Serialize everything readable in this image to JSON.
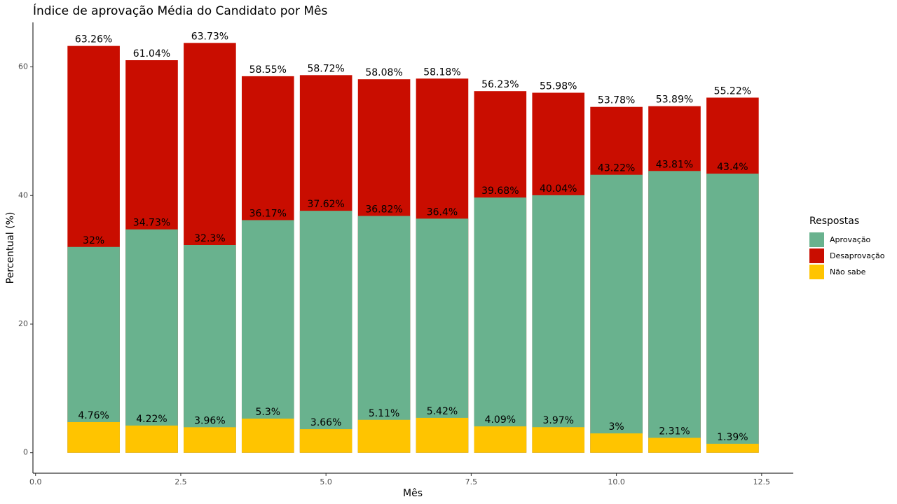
{
  "chart_data": {
    "type": "bar",
    "title": "Índice de aprovação Média do Candidato por Mês",
    "x_label": "Mês",
    "y_label": "Percentual (%)",
    "legend_title": "Respostas",
    "x": [
      1,
      2,
      3,
      4,
      5,
      6,
      7,
      8,
      9,
      10,
      11,
      12
    ],
    "series": [
      {
        "name": "Aprovação",
        "color": "#69b28e",
        "values": [
          32,
          34.73,
          32.3,
          36.17,
          37.62,
          36.82,
          36.4,
          39.68,
          40.04,
          43.22,
          43.81,
          43.4
        ],
        "value_labels": [
          "32%",
          "34.73%",
          "32.3%",
          "36.17%",
          "37.62%",
          "36.82%",
          "36.4%",
          "39.68%",
          "40.04%",
          "43.22%",
          "43.81%",
          "43.4%"
        ]
      },
      {
        "name": "Desaprovação",
        "color": "#c90d00",
        "values": [
          63.26,
          61.04,
          63.73,
          58.55,
          58.72,
          58.08,
          58.18,
          56.23,
          55.98,
          53.78,
          53.89,
          55.22
        ],
        "value_labels": [
          "63.26%",
          "61.04%",
          "63.73%",
          "58.55%",
          "58.72%",
          "58.08%",
          "58.18%",
          "56.23%",
          "55.98%",
          "53.78%",
          "53.89%",
          "55.22%"
        ]
      },
      {
        "name": "Não sabe",
        "color": "#ffc400",
        "values": [
          4.76,
          4.22,
          3.96,
          5.3,
          3.66,
          5.11,
          5.42,
          4.09,
          3.97,
          3,
          2.31,
          1.39
        ],
        "value_labels": [
          "4.76%",
          "4.22%",
          "3.96%",
          "5.3%",
          "3.66%",
          "5.11%",
          "5.42%",
          "4.09%",
          "3.97%",
          "3%",
          "2.31%",
          "1.39%"
        ]
      }
    ],
    "xlim": [
      -0.045,
      13.045
    ],
    "xticks": [
      {
        "value": 0,
        "label": "0.0"
      },
      {
        "value": 2.5,
        "label": "2.5"
      },
      {
        "value": 5,
        "label": "5.0"
      },
      {
        "value": 7.5,
        "label": "7.5"
      },
      {
        "value": 10,
        "label": "10.0"
      },
      {
        "value": 12.5,
        "label": "12.5"
      }
    ],
    "ylim": [
      -3.19,
      66.92
    ],
    "yticks": [
      0,
      20,
      40,
      60
    ],
    "grid": false,
    "legend": "right"
  }
}
